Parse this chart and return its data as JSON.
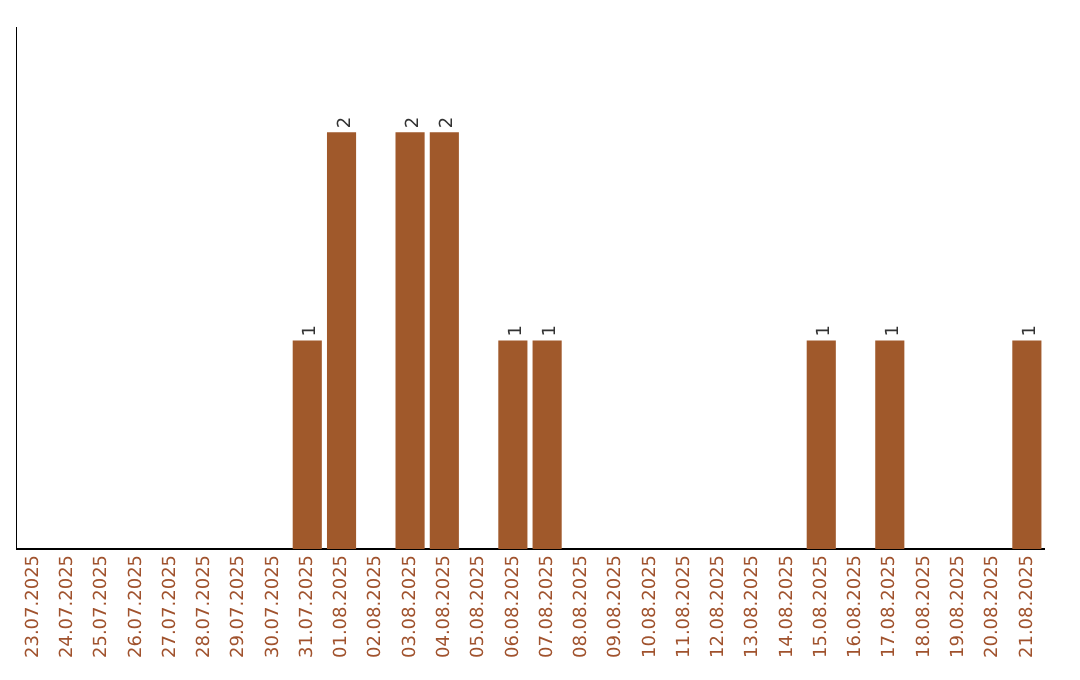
{
  "chart_data": {
    "type": "bar",
    "categories": [
      "23.07.2025",
      "24.07.2025",
      "25.07.2025",
      "26.07.2025",
      "27.07.2025",
      "28.07.2025",
      "29.07.2025",
      "30.07.2025",
      "31.07.2025",
      "01.08.2025",
      "02.08.2025",
      "03.08.2025",
      "04.08.2025",
      "05.08.2025",
      "06.08.2025",
      "07.08.2025",
      "08.08.2025",
      "09.08.2025",
      "10.08.2025",
      "11.08.2025",
      "12.08.2025",
      "13.08.2025",
      "14.08.2025",
      "15.08.2025",
      "16.08.2025",
      "17.08.2025",
      "18.08.2025",
      "19.08.2025",
      "20.08.2025",
      "21.08.2025"
    ],
    "values": [
      0,
      0,
      0,
      0,
      0,
      0,
      0,
      0,
      1,
      2,
      0,
      2,
      2,
      0,
      1,
      1,
      0,
      0,
      0,
      0,
      0,
      0,
      0,
      1,
      0,
      1,
      0,
      0,
      0,
      1
    ],
    "value_labels": [
      null,
      null,
      null,
      null,
      null,
      null,
      null,
      null,
      "1",
      "2",
      null,
      "2",
      "2",
      null,
      "1",
      "1",
      null,
      null,
      null,
      null,
      null,
      null,
      null,
      "1",
      null,
      "1",
      null,
      null,
      null,
      "1"
    ],
    "color": "#a0592b",
    "grid": false,
    "tick_labels": "x"
  }
}
